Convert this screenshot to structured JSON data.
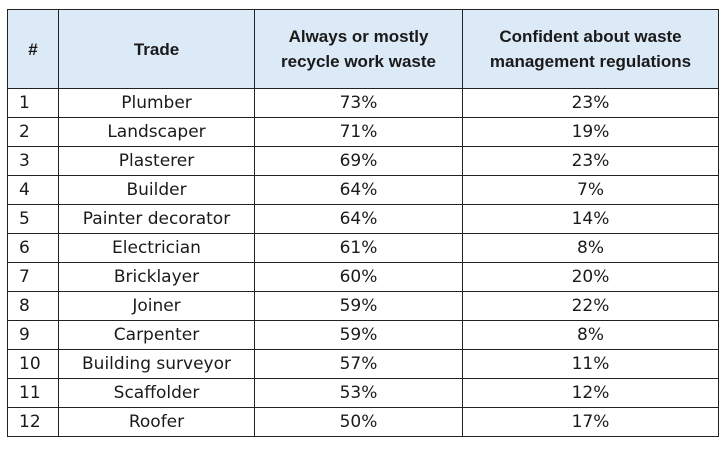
{
  "table": {
    "headers": [
      "#",
      "Trade",
      "Always or mostly recycle work waste",
      "Confident about waste management regulations"
    ],
    "rows": [
      {
        "num": "1",
        "trade": "Plumber",
        "recycle": "73%",
        "confident": "23%"
      },
      {
        "num": "2",
        "trade": "Landscaper",
        "recycle": "71%",
        "confident": "19%"
      },
      {
        "num": "3",
        "trade": "Plasterer",
        "recycle": "69%",
        "confident": "23%"
      },
      {
        "num": "4",
        "trade": "Builder",
        "recycle": "64%",
        "confident": "7%"
      },
      {
        "num": "5",
        "trade": "Painter decorator",
        "recycle": "64%",
        "confident": "14%"
      },
      {
        "num": "6",
        "trade": "Electrician",
        "recycle": "61%",
        "confident": "8%"
      },
      {
        "num": "7",
        "trade": "Bricklayer",
        "recycle": "60%",
        "confident": "20%"
      },
      {
        "num": "8",
        "trade": "Joiner",
        "recycle": "59%",
        "confident": "22%"
      },
      {
        "num": "9",
        "trade": "Carpenter",
        "recycle": "59%",
        "confident": "8%"
      },
      {
        "num": "10",
        "trade": "Building surveyor",
        "recycle": "57%",
        "confident": "11%"
      },
      {
        "num": "11",
        "trade": "Scaffolder",
        "recycle": "53%",
        "confident": "12%"
      },
      {
        "num": "12",
        "trade": "Roofer",
        "recycle": "50%",
        "confident": "17%"
      }
    ]
  }
}
